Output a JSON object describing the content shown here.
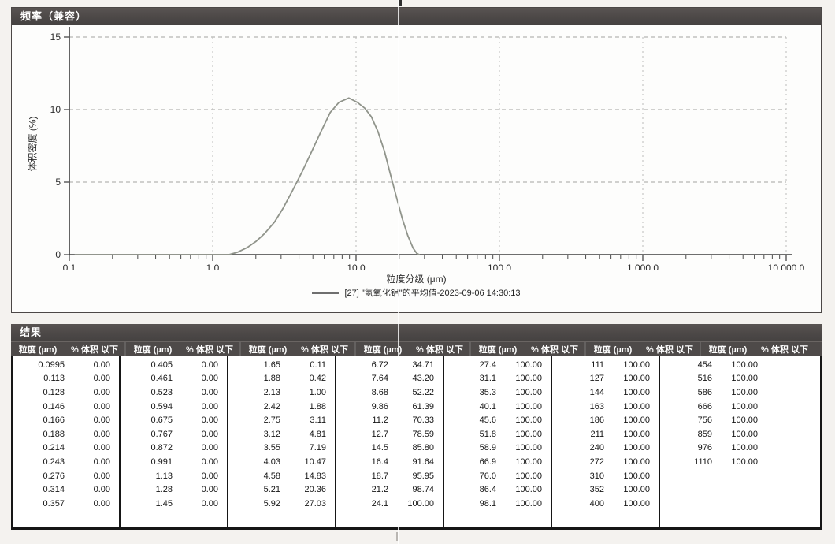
{
  "chart_panel": {
    "title": "频率（兼容）"
  },
  "chart_data": {
    "type": "line",
    "title": "频率（兼容）",
    "xlabel": "粒度分级 (μm)",
    "ylabel": "体积密度 (%)",
    "x_scale": "log",
    "xlim": [
      0.1,
      10000
    ],
    "ylim": [
      0,
      15
    ],
    "grid": true,
    "legend_position": "bottom",
    "y_ticks": [
      0,
      5,
      10,
      15
    ],
    "x_major_ticks": [
      0.1,
      1,
      10,
      100,
      1000,
      10000
    ],
    "x_tick_labels": [
      "0.1",
      "1.0",
      "10.0",
      "100.0",
      "1,000.0",
      "10,000.0"
    ],
    "legend": "[27] \"氢氧化铝\"的平均值-2023-09-06 14:30:13",
    "series": [
      {
        "name": "[27] \"氢氧化铝\"的平均值-2023-09-06 14:30:13",
        "color": "#90948b",
        "points": [
          [
            0.11,
            0
          ],
          [
            1.3,
            0
          ],
          [
            1.5,
            0.18
          ],
          [
            1.75,
            0.5
          ],
          [
            2.0,
            0.9
          ],
          [
            2.3,
            1.45
          ],
          [
            2.7,
            2.25
          ],
          [
            3.1,
            3.2
          ],
          [
            3.6,
            4.4
          ],
          [
            4.2,
            5.7
          ],
          [
            4.9,
            7.1
          ],
          [
            5.7,
            8.5
          ],
          [
            6.6,
            9.8
          ],
          [
            7.6,
            10.5
          ],
          [
            8.9,
            10.8
          ],
          [
            10.2,
            10.5
          ],
          [
            11.5,
            10.1
          ],
          [
            12.8,
            9.5
          ],
          [
            14.2,
            8.5
          ],
          [
            15.8,
            7.1
          ],
          [
            17.4,
            5.5
          ],
          [
            19.2,
            3.9
          ],
          [
            21.0,
            2.5
          ],
          [
            23.0,
            1.3
          ],
          [
            25.0,
            0.45
          ],
          [
            26.5,
            0.1
          ],
          [
            27.5,
            0
          ]
        ]
      }
    ]
  },
  "results_table": {
    "title": "结果",
    "col_headers": {
      "size": "粒度 (µm)",
      "pct": "% 体积 以下"
    },
    "groups": [
      {
        "rows": [
          [
            "0.0995",
            "0.00"
          ],
          [
            "0.113",
            "0.00"
          ],
          [
            "0.128",
            "0.00"
          ],
          [
            "0.146",
            "0.00"
          ],
          [
            "0.166",
            "0.00"
          ],
          [
            "0.188",
            "0.00"
          ],
          [
            "0.214",
            "0.00"
          ],
          [
            "0.243",
            "0.00"
          ],
          [
            "0.276",
            "0.00"
          ],
          [
            "0.314",
            "0.00"
          ],
          [
            "0.357",
            "0.00"
          ]
        ]
      },
      {
        "rows": [
          [
            "0.405",
            "0.00"
          ],
          [
            "0.461",
            "0.00"
          ],
          [
            "0.523",
            "0.00"
          ],
          [
            "0.594",
            "0.00"
          ],
          [
            "0.675",
            "0.00"
          ],
          [
            "0.767",
            "0.00"
          ],
          [
            "0.872",
            "0.00"
          ],
          [
            "0.991",
            "0.00"
          ],
          [
            "1.13",
            "0.00"
          ],
          [
            "1.28",
            "0.00"
          ],
          [
            "1.45",
            "0.00"
          ]
        ]
      },
      {
        "rows": [
          [
            "1.65",
            "0.11"
          ],
          [
            "1.88",
            "0.42"
          ],
          [
            "2.13",
            "1.00"
          ],
          [
            "2.42",
            "1.88"
          ],
          [
            "2.75",
            "3.11"
          ],
          [
            "3.12",
            "4.81"
          ],
          [
            "3.55",
            "7.19"
          ],
          [
            "4.03",
            "10.47"
          ],
          [
            "4.58",
            "14.83"
          ],
          [
            "5.21",
            "20.36"
          ],
          [
            "5.92",
            "27.03"
          ]
        ]
      },
      {
        "rows": [
          [
            "6.72",
            "34.71"
          ],
          [
            "7.64",
            "43.20"
          ],
          [
            "8.68",
            "52.22"
          ],
          [
            "9.86",
            "61.39"
          ],
          [
            "11.2",
            "70.33"
          ],
          [
            "12.7",
            "78.59"
          ],
          [
            "14.5",
            "85.80"
          ],
          [
            "16.4",
            "91.64"
          ],
          [
            "18.7",
            "95.95"
          ],
          [
            "21.2",
            "98.74"
          ],
          [
            "24.1",
            "100.00"
          ]
        ]
      },
      {
        "rows": [
          [
            "27.4",
            "100.00"
          ],
          [
            "31.1",
            "100.00"
          ],
          [
            "35.3",
            "100.00"
          ],
          [
            "40.1",
            "100.00"
          ],
          [
            "45.6",
            "100.00"
          ],
          [
            "51.8",
            "100.00"
          ],
          [
            "58.9",
            "100.00"
          ],
          [
            "66.9",
            "100.00"
          ],
          [
            "76.0",
            "100.00"
          ],
          [
            "86.4",
            "100.00"
          ],
          [
            "98.1",
            "100.00"
          ]
        ]
      },
      {
        "rows": [
          [
            "111",
            "100.00"
          ],
          [
            "127",
            "100.00"
          ],
          [
            "144",
            "100.00"
          ],
          [
            "163",
            "100.00"
          ],
          [
            "186",
            "100.00"
          ],
          [
            "211",
            "100.00"
          ],
          [
            "240",
            "100.00"
          ],
          [
            "272",
            "100.00"
          ],
          [
            "310",
            "100.00"
          ],
          [
            "352",
            "100.00"
          ],
          [
            "400",
            "100.00"
          ]
        ]
      },
      {
        "rows": [
          [
            "454",
            "100.00"
          ],
          [
            "516",
            "100.00"
          ],
          [
            "586",
            "100.00"
          ],
          [
            "666",
            "100.00"
          ],
          [
            "756",
            "100.00"
          ],
          [
            "859",
            "100.00"
          ],
          [
            "976",
            "100.00"
          ],
          [
            "1110",
            "100.00"
          ]
        ]
      }
    ]
  }
}
